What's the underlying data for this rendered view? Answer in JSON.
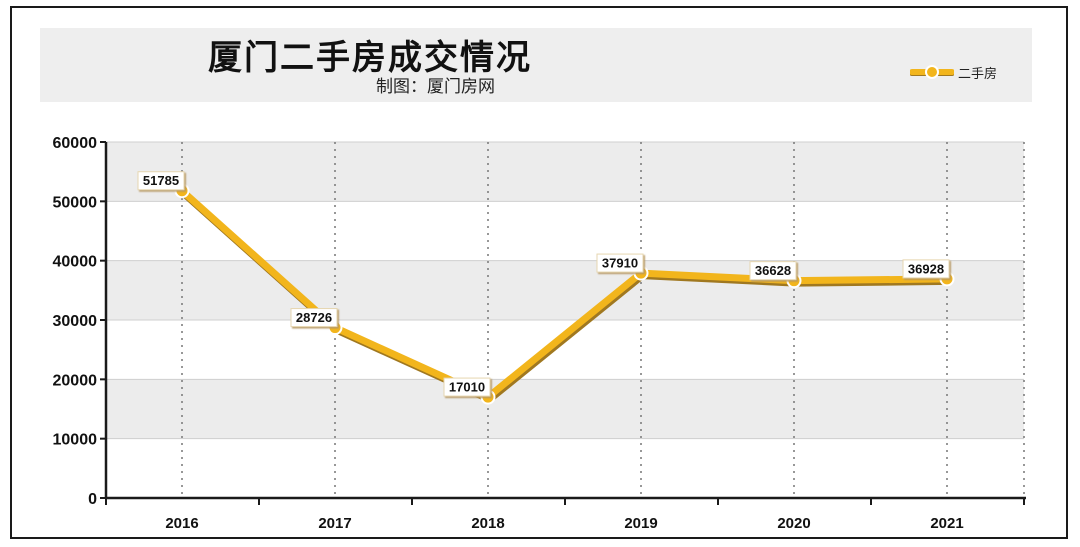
{
  "header": {
    "title": "厦门二手房成交情况",
    "subtitle": "制图：厦门房网"
  },
  "colors": {
    "line": "#f2b51c",
    "line_shadow": "#a07820",
    "band": "#ececec",
    "grid": "#777777",
    "axis": "#1a1a1a"
  },
  "chart_data": {
    "type": "line",
    "title": "厦门二手房成交情况",
    "categories": [
      "2016",
      "2017",
      "2018",
      "2019",
      "2020",
      "2021"
    ],
    "series": [
      {
        "name": "二手房",
        "values": [
          51785,
          28726,
          17010,
          37910,
          36628,
          36928
        ]
      }
    ],
    "data_labels": [
      "51785",
      "28726",
      "17010",
      "37910",
      "36628",
      "36928"
    ],
    "ylim": [
      0,
      60000
    ],
    "yticks": [
      "0",
      "10000",
      "20000",
      "30000",
      "40000",
      "50000",
      "60000"
    ],
    "xlabel": "",
    "ylabel": "",
    "grid": true,
    "legend": "top-right"
  }
}
